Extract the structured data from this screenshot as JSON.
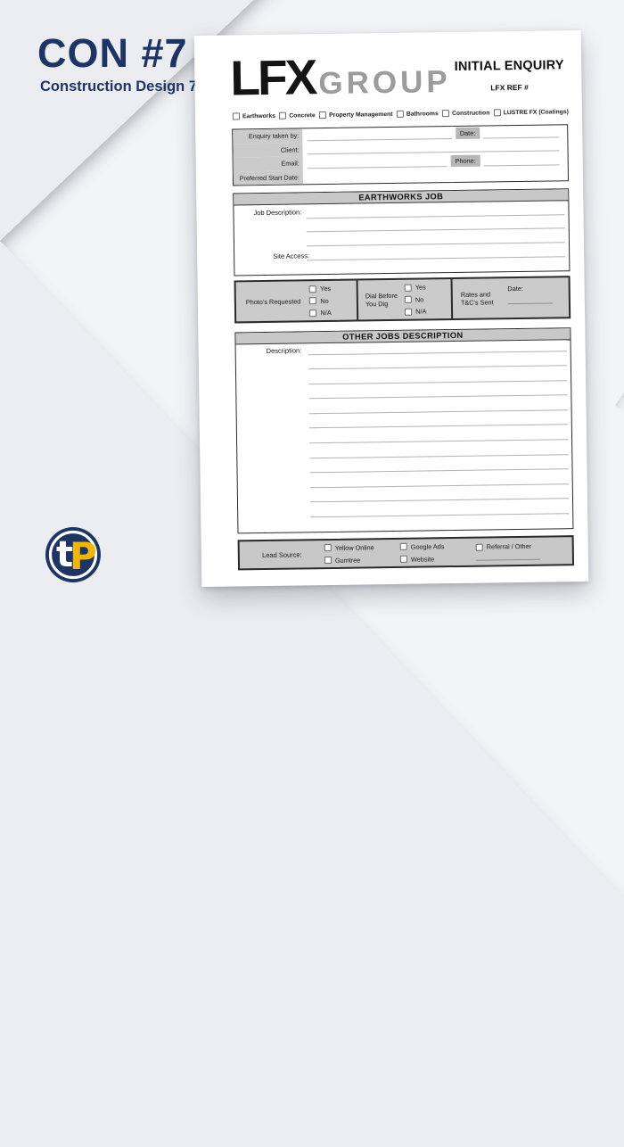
{
  "panel": {
    "title": "CON #7",
    "subtitle": "Construction Design 7"
  },
  "logo_badge": {
    "letters": "tP"
  },
  "form": {
    "brand": {
      "name": "LFX",
      "suffix": "GROUP"
    },
    "title": "INITIAL ENQUIRY",
    "ref_label": "LFX REF #",
    "categories": [
      "Earthworks",
      "Concrete",
      "Property Management",
      "Bathrooms",
      "Construction",
      "LUSTRE FX (Coatings)"
    ],
    "enquiry": {
      "row1_label": "Enquiry taken by:",
      "row2_label": "Client:",
      "row3_label": "Email:",
      "row4_label": "Preferred Start Date:",
      "date_label": "Date:",
      "phone_label": "Phone:"
    },
    "earthworks": {
      "header": "EARTHWORKS JOB",
      "job_description_label": "Job Description:",
      "site_access_label": "Site Access:"
    },
    "checks_row": {
      "photos_label": "Photo's Requested",
      "dial_label_line1": "Dial Before",
      "dial_label_line2": "You Dig",
      "rates_label_line1": "Rates and",
      "rates_label_line2": "T&C's Sent",
      "date_label": "Date:",
      "options": [
        "Yes",
        "No",
        "N/A"
      ]
    },
    "other_jobs": {
      "header": "OTHER JOBS DESCRIPTION",
      "description_label": "Description:"
    },
    "lead_source": {
      "label": "Lead Source:",
      "options": [
        "Yellow Online",
        "Gumtree",
        "Google Ads",
        "Website",
        "Referral / Other"
      ]
    }
  },
  "colors": {
    "navy": "#1c3566",
    "yellow": "#f2b705",
    "brand_black": "#141414",
    "brand_gray": "#9c9c9c",
    "fill_gray": "#c8c8c8"
  }
}
